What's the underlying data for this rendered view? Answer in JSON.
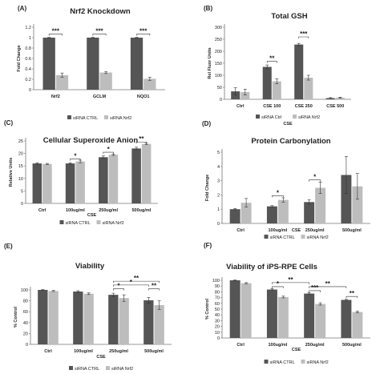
{
  "colors": {
    "ctrl": "#555555",
    "nrf2": "#bdbdbd",
    "axis": "#777777",
    "grid": "#cfcfcf"
  },
  "panels": [
    {
      "label": "(A)",
      "title": "Nrf2 Knockdown"
    },
    {
      "label": "(B)",
      "title": "Total GSH"
    },
    {
      "label": "(C)",
      "title": "Cellular Superoxide Anion"
    },
    {
      "label": "(D)",
      "title": "Protein Carbonylation"
    },
    {
      "label": "(E)",
      "title": "Viability"
    },
    {
      "label": "(F)",
      "title": "Viability of iPS-RPE Cells"
    }
  ],
  "chart_data": [
    {
      "type": "bar",
      "label": "(A)",
      "title": "Nrf2 Knockdown",
      "ylabel": "Fold Change",
      "xlabel": "",
      "ylim": [
        0,
        1.2
      ],
      "yticks": [
        "0",
        "0.2",
        "0.4",
        "0.6",
        "0.8",
        "1",
        "1.2"
      ],
      "categories": [
        "Nrf2",
        "GCLM",
        "NQO1"
      ],
      "series": [
        {
          "name": "siRNA CTRL",
          "values": [
            1.0,
            1.0,
            1.0
          ],
          "errors": [
            0.005,
            0.005,
            0.005
          ]
        },
        {
          "name": "siRNA Nrf2",
          "values": [
            0.28,
            0.33,
            0.21
          ],
          "errors": [
            0.04,
            0.02,
            0.03
          ]
        }
      ],
      "significance": [
        {
          "text": "***",
          "category": 0,
          "y": 1.07
        },
        {
          "text": "***",
          "category": 1,
          "y": 1.07
        },
        {
          "text": "***",
          "category": 2,
          "y": 1.07
        }
      ],
      "grid": false,
      "legend": "bottom"
    },
    {
      "type": "bar",
      "label": "(B)",
      "title": "Total GSH",
      "ylabel": "Rel Fluor Units",
      "xlabel": "CSE",
      "ylim": [
        0,
        300
      ],
      "yticks": [
        "0",
        "50",
        "100",
        "150",
        "200",
        "250",
        "300"
      ],
      "categories": [
        "Ctrl",
        "CSE 100",
        "CSE 250",
        "CSE 500"
      ],
      "series": [
        {
          "name": "siRNA Ctrl",
          "values": [
            33,
            135,
            228,
            5
          ],
          "errors": [
            15,
            8,
            5,
            2
          ]
        },
        {
          "name": "siRNA Nrf2",
          "values": [
            30,
            75,
            90,
            7
          ],
          "errors": [
            12,
            10,
            10,
            2
          ]
        }
      ],
      "significance": [
        {
          "text": "**",
          "category": 1,
          "y": 158
        },
        {
          "text": "***",
          "category": 2,
          "y": 260
        }
      ],
      "grid": false,
      "legend": "bottom"
    },
    {
      "type": "bar",
      "label": "(C)",
      "title": "Cellular Superoxide Anion",
      "ylabel": "Relative Units",
      "xlabel": "CSE",
      "ylim": [
        0,
        25
      ],
      "yticks": [
        "0",
        "5",
        "10",
        "15",
        "20",
        "25"
      ],
      "categories": [
        "Ctrl",
        "100ug/ml",
        "250ug/ml",
        "500ug/ml"
      ],
      "series": [
        {
          "name": "siRNA CTRL",
          "values": [
            16,
            16,
            18.5,
            22
          ],
          "errors": [
            0.3,
            0.3,
            0.5,
            0.5
          ]
        },
        {
          "name": "siRNA Nrf2",
          "values": [
            15.8,
            16.8,
            19.5,
            23.8
          ],
          "errors": [
            0.2,
            0.5,
            0.3,
            0.3
          ]
        }
      ],
      "significance": [
        {
          "text": "*",
          "category": 1,
          "y": 17.8
        },
        {
          "text": "*",
          "category": 2,
          "y": 20.5
        },
        {
          "text": "**",
          "category": 3,
          "y": 24.6
        }
      ],
      "grid": false,
      "legend": "bottom"
    },
    {
      "type": "bar",
      "label": "(D)",
      "title": "Protein Carbonylation",
      "ylabel": "Fold Change",
      "xlabel": "CSE",
      "ylim": [
        0,
        5
      ],
      "yticks": [
        "0",
        "1",
        "2",
        "3",
        "4",
        "5"
      ],
      "categories": [
        "Ctrl",
        "100ug/ml",
        "250ug/ml",
        "500ug/ml"
      ],
      "series": [
        {
          "name": "siRNA CTRL",
          "values": [
            1.0,
            1.2,
            1.5,
            3.4
          ],
          "errors": [
            0.05,
            0.05,
            0.15,
            1.3
          ]
        },
        {
          "name": "siRNA Nrf2",
          "values": [
            1.45,
            1.65,
            2.5,
            2.6
          ],
          "errors": [
            0.3,
            0.15,
            0.4,
            0.9
          ]
        }
      ],
      "significance": [
        {
          "text": "*",
          "category": 1,
          "y": 1.95
        },
        {
          "text": "*",
          "category": 2,
          "y": 3.05
        }
      ],
      "grid": false,
      "legend": "bottom"
    },
    {
      "type": "bar",
      "label": "(E)",
      "title": "Viability",
      "ylabel": "% Control",
      "xlabel": "CSE",
      "ylim": [
        0,
        100
      ],
      "yticks": [
        "0",
        "20",
        "40",
        "60",
        "80",
        "100"
      ],
      "categories": [
        "Ctrl",
        "100ug/ml",
        "250ug/ml",
        "500ug/ml"
      ],
      "series": [
        {
          "name": "siRNA CTRL",
          "values": [
            100,
            97,
            91,
            81
          ],
          "errors": [
            0.5,
            1.5,
            3,
            5
          ]
        },
        {
          "name": "siRNA Nrf2",
          "values": [
            98,
            93,
            85,
            72
          ],
          "errors": [
            1,
            1.5,
            6,
            8
          ]
        }
      ],
      "significance": [
        {
          "text": "*",
          "from": [
            2,
            0
          ],
          "to": [
            2,
            1
          ],
          "y": 102
        },
        {
          "text": "*",
          "from": [
            2,
            0
          ],
          "to": [
            3,
            0
          ],
          "y": 109
        },
        {
          "text": "**",
          "from": [
            2,
            0
          ],
          "to": [
            3,
            1
          ],
          "y": 116
        },
        {
          "text": "**",
          "from": [
            3,
            0
          ],
          "to": [
            3,
            1
          ],
          "y": 102
        }
      ],
      "grid": false,
      "legend": "bottom"
    },
    {
      "type": "bar",
      "label": "(F)",
      "title": "Viability of iPS-RPE Cells",
      "ylabel": "% Control",
      "xlabel": "CSE",
      "ylim": [
        0,
        100
      ],
      "yticks": [
        "0",
        "10",
        "20",
        "30",
        "40",
        "50",
        "60",
        "70",
        "80",
        "90",
        "100"
      ],
      "categories": [
        "Ctrl",
        "100ug/ml",
        "250ug/ml",
        "500ug/ml"
      ],
      "series": [
        {
          "name": "siRNA CTRL",
          "values": [
            100,
            84,
            77,
            66
          ],
          "errors": [
            0.5,
            1.5,
            1.5,
            1
          ]
        },
        {
          "name": "siRNA Nrf2",
          "values": [
            95,
            71,
            59,
            45
          ],
          "errors": [
            1,
            1.5,
            2,
            1.5
          ]
        }
      ],
      "significance": [
        {
          "text": "*",
          "from": [
            1,
            0
          ],
          "to": [
            1,
            1
          ],
          "y": 89
        },
        {
          "text": "**",
          "from": [
            1,
            0
          ],
          "to": [
            2,
            0
          ],
          "y": 96
        },
        {
          "text": "***",
          "from": [
            2,
            0
          ],
          "to": [
            2,
            1
          ],
          "y": 82
        },
        {
          "text": "**",
          "from": [
            2,
            0
          ],
          "to": [
            3,
            0
          ],
          "y": 89
        },
        {
          "text": "**",
          "from": [
            3,
            0
          ],
          "to": [
            3,
            1
          ],
          "y": 72
        }
      ],
      "grid": false,
      "legend": "bottom"
    }
  ]
}
